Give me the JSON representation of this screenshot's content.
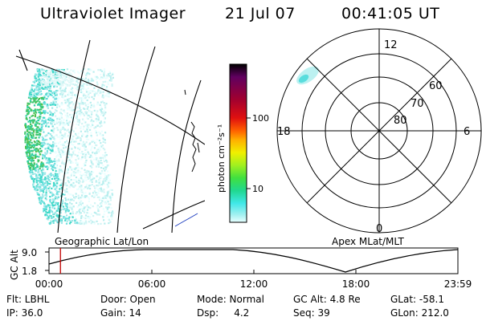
{
  "header": {
    "title": "Ultraviolet Imager",
    "date": "21 Jul 07",
    "time": "00:41:05 UT"
  },
  "colorbar": {
    "unit_label": "photon cm⁻²s⁻¹",
    "ticks": [
      "100",
      "10"
    ],
    "colors": [
      "#000000",
      "#600060",
      "#a00030",
      "#e01010",
      "#ff6000",
      "#ffb000",
      "#f0f000",
      "#a0f020",
      "#40e040",
      "#20d890",
      "#40e8e8",
      "#a0f0f0",
      "#e8ffff"
    ]
  },
  "polar_plot": {
    "mlt_labels": [
      "12",
      "18",
      "6",
      "0"
    ],
    "lat_labels": [
      "60",
      "70",
      "80"
    ]
  },
  "timeline": {
    "axis_label": "GC Alt",
    "y_ticks": [
      "9.0",
      "1.8"
    ],
    "left_caption": "Geographic Lat/Lon",
    "right_caption": "Apex MLat/MLT",
    "x_ticks": [
      "00:00",
      "06:00",
      "12:00",
      "18:00",
      "23:59"
    ],
    "current_time_fraction": 0.028,
    "trace_color": "#000000",
    "marker_color": "#c00000"
  },
  "info": {
    "row1": [
      "Flt: LBHL",
      "Door: Open",
      "Mode: Normal",
      "GC Alt: 4.8 Re",
      "GLat: -58.1"
    ],
    "row2": [
      "IP: 36.0",
      "Gain: 14",
      "Dsp:     4.2",
      "Seq: 39",
      "GLon: 212.0"
    ]
  }
}
